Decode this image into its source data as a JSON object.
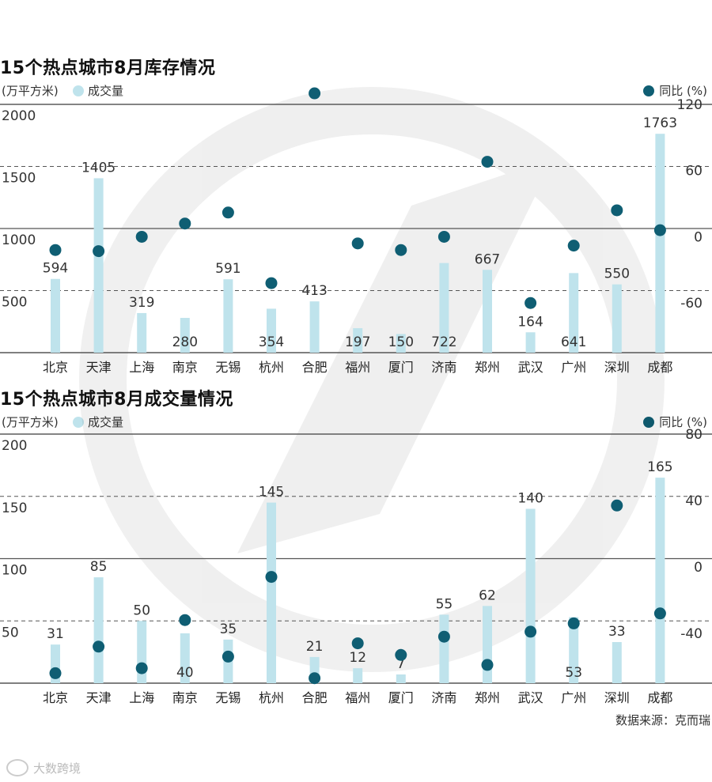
{
  "chart_data": [
    {
      "type": "bar",
      "title": "15个热点城市8月库存情况",
      "ylabel_left": "(万平方米)",
      "legend_bar": "成交量",
      "legend_dot": "同比 (%)",
      "categories": [
        "北京",
        "天津",
        "上海",
        "南京",
        "无锡",
        "杭州",
        "合肥",
        "福州",
        "厦门",
        "济南",
        "郑州",
        "武汉",
        "广州",
        "深圳",
        "成都"
      ],
      "values": [
        594,
        1405,
        319,
        280,
        591,
        354,
        413,
        197,
        150,
        722,
        667,
        164,
        641,
        550,
        1763
      ],
      "yoy": [
        -12,
        -13,
        0,
        12,
        22,
        -42,
        130,
        -6,
        -12,
        0,
        68,
        -60,
        -8,
        24,
        6
      ],
      "ylim": [
        0,
        2000
      ],
      "y_ticks": [
        "500",
        "1000",
        "1500",
        "2000"
      ],
      "y2lim": [
        -105,
        120
      ],
      "y2_ticks": [
        "-60",
        "0",
        "60",
        "120"
      ]
    },
    {
      "type": "bar",
      "title": "15个热点城市8月成交量情况",
      "ylabel_left": "(万平方米)",
      "legend_bar": "成交量",
      "legend_dot": "同比 (%)",
      "categories": [
        "北京",
        "天津",
        "上海",
        "南京",
        "无锡",
        "杭州",
        "合肥",
        "福州",
        "厦门",
        "济南",
        "郑州",
        "武汉",
        "广州",
        "深圳",
        "成都"
      ],
      "values": [
        31,
        85,
        50,
        40,
        35,
        145,
        21,
        12,
        7,
        55,
        62,
        140,
        53,
        33,
        165
      ],
      "yoy": [
        -64,
        -48,
        -61,
        -32,
        -54,
        -6,
        -67,
        -46,
        -53,
        -42,
        -59,
        -39,
        -34,
        37,
        -28
      ],
      "ylim": [
        0,
        200
      ],
      "y_ticks": [
        "50",
        "100",
        "150",
        "200"
      ],
      "y2lim": [
        -70,
        80
      ],
      "y2_ticks": [
        "-40",
        "0",
        "40",
        "80"
      ]
    }
  ],
  "source": "数据来源：克而瑞",
  "brand": "大数跨境",
  "colors": {
    "bar": "#bfe3ec",
    "dot": "#0f5e73",
    "grid": "#555555"
  }
}
